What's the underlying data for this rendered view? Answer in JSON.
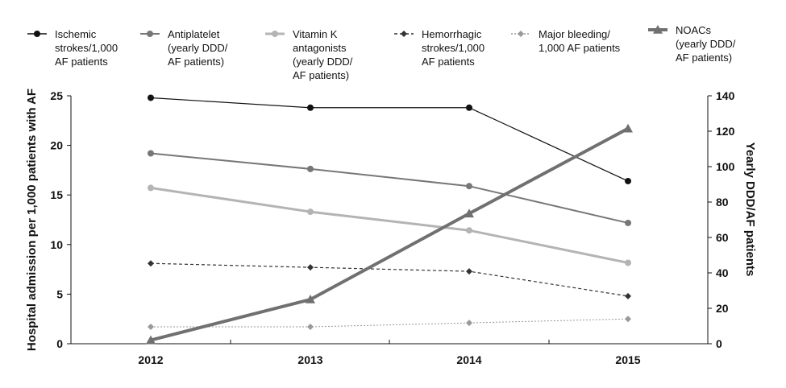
{
  "chart_data": {
    "type": "line",
    "categories": [
      "2012",
      "2013",
      "2014",
      "2015"
    ],
    "y_left": {
      "label": "Hospital admission per 1,000 patients with AF",
      "range": [
        0,
        25
      ],
      "ticks": [
        "0",
        "5",
        "10",
        "15",
        "20",
        "25"
      ]
    },
    "y_right": {
      "label": "Yearly DDD/AF patients",
      "range": [
        0,
        140
      ],
      "ticks": [
        "0",
        "20",
        "40",
        "60",
        "80",
        "100",
        "120",
        "140"
      ]
    },
    "grid": false,
    "legend_position": "top",
    "series": [
      {
        "name_lines": [
          "Ischemic",
          "strokes/1,000",
          "AF patients"
        ],
        "axis": "left",
        "values": [
          24.8,
          23.8,
          23.8,
          16.4
        ],
        "color": "#111111",
        "marker": "circle",
        "dash": "none",
        "width": 1.2
      },
      {
        "name_lines": [
          "Antiplatelet",
          "(yearly DDD/",
          "AF patients)"
        ],
        "axis": "right",
        "values": [
          107.5,
          98.7,
          89.0,
          68.2
        ],
        "color": "#777777",
        "marker": "circle",
        "dash": "none",
        "width": 2
      },
      {
        "name_lines": [
          "Vitamin K",
          "antagonists",
          "(yearly DDD/",
          "AF patients)"
        ],
        "axis": "right",
        "values": [
          88.0,
          74.5,
          64.0,
          45.7
        ],
        "color": "#b4b4b4",
        "marker": "circle",
        "dash": "none",
        "width": 3
      },
      {
        "name_lines": [
          "Hemorrhagic",
          "strokes/1,000",
          "AF patients"
        ],
        "axis": "left",
        "values": [
          8.1,
          7.7,
          7.3,
          4.8
        ],
        "color": "#333333",
        "marker": "diamond",
        "dash": "4,3",
        "width": 1.2
      },
      {
        "name_lines": [
          "Major bleeding/",
          "1,000 AF patients"
        ],
        "axis": "left",
        "values": [
          1.7,
          1.7,
          2.1,
          2.5
        ],
        "color": "#999999",
        "marker": "diamond",
        "dash": "2,2",
        "width": 1
      },
      {
        "name_lines": [
          "NOACs",
          "(yearly DDD/",
          "AF patients)"
        ],
        "axis": "right",
        "values": [
          2.0,
          25.0,
          73.5,
          121.5
        ],
        "color": "#707070",
        "marker": "triangle",
        "dash": "none",
        "width": 4
      }
    ]
  }
}
